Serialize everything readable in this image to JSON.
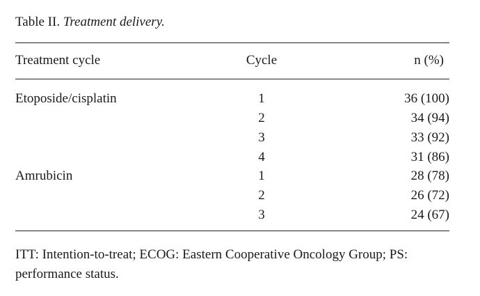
{
  "caption": {
    "label": "Table II.",
    "title": "Treatment delivery."
  },
  "table": {
    "headers": [
      "Treatment cycle",
      "Cycle",
      "n (%)"
    ],
    "rows": [
      {
        "treatment": "Etoposide/cisplatin",
        "cycle": "1",
        "n": "36 (100)"
      },
      {
        "treatment": "",
        "cycle": "2",
        "n": "34 (94)"
      },
      {
        "treatment": "",
        "cycle": "3",
        "n": "33 (92)"
      },
      {
        "treatment": "",
        "cycle": "4",
        "n": "31 (86)"
      },
      {
        "treatment": "Amrubicin",
        "cycle": "1",
        "n": "28 (78)"
      },
      {
        "treatment": "",
        "cycle": "2",
        "n": "26 (72)"
      },
      {
        "treatment": "",
        "cycle": "3",
        "n": "24 (67)"
      }
    ]
  },
  "footnote": "ITT: Intention-to-treat; ECOG: Eastern Cooperative Oncology Group; PS: performance status."
}
